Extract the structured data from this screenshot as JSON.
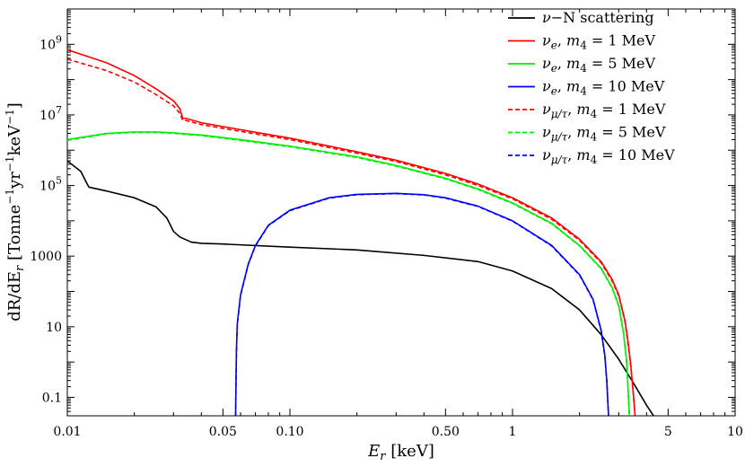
{
  "chart_data": {
    "type": "line",
    "xlabel": "E_r [keV]",
    "ylabel": "dR/dE_r [Tonne^-1 yr^-1 keV^-1]",
    "xscale": "log",
    "yscale": "log",
    "xlim": [
      0.01,
      10
    ],
    "ylim": [
      0.03,
      10000000000
    ],
    "legend_position": "top-right",
    "x_ticks": [
      {
        "value": 0.01,
        "label": "0.01"
      },
      {
        "value": 0.05,
        "label": "0.05"
      },
      {
        "value": 0.1,
        "label": "0.10"
      },
      {
        "value": 0.5,
        "label": "0.50"
      },
      {
        "value": 1,
        "label": "1"
      },
      {
        "value": 5,
        "label": "5"
      },
      {
        "value": 10,
        "label": "10"
      }
    ],
    "y_ticks": [
      {
        "value": 0.1,
        "label": "0.1",
        "power": ""
      },
      {
        "value": 10,
        "label": "10",
        "power": ""
      },
      {
        "value": 1000,
        "label": "1000",
        "power": ""
      },
      {
        "value": 100000,
        "label": "10",
        "power": "5"
      },
      {
        "value": 10000000,
        "label": "10",
        "power": "7"
      },
      {
        "value": 1000000000,
        "label": "10",
        "power": "9"
      }
    ],
    "series": [
      {
        "name": "ν−N scattering",
        "color": "#000000",
        "dash": "solid",
        "x": [
          0.01,
          0.0115,
          0.0122,
          0.0125,
          0.013,
          0.015,
          0.02,
          0.025,
          0.028,
          0.03,
          0.032,
          0.036,
          0.04,
          0.05,
          0.1,
          0.2,
          0.4,
          0.7,
          1.0,
          1.5,
          2.0,
          2.5,
          3.0,
          3.5,
          4.0,
          4.3
        ],
        "y": [
          500000,
          250000,
          120000,
          90000,
          85000,
          70000,
          45000,
          25000,
          12000,
          5000,
          3500,
          2500,
          2300,
          2200,
          1800,
          1500,
          1050,
          700,
          380,
          120,
          30,
          6,
          1.2,
          0.25,
          0.06,
          0.03
        ]
      },
      {
        "name": "νe, m4 = 1 MeV",
        "color": "#ff0000",
        "dash": "solid",
        "x": [
          0.01,
          0.015,
          0.02,
          0.025,
          0.03,
          0.032,
          0.033,
          0.034,
          0.04,
          0.06,
          0.1,
          0.2,
          0.3,
          0.5,
          0.7,
          1.0,
          1.5,
          2.0,
          2.5,
          2.8,
          3.0,
          3.2,
          3.3,
          3.4,
          3.5,
          3.55
        ],
        "y": [
          700000000,
          300000000,
          130000000,
          55000000,
          25000000,
          15000000,
          8000000,
          8000000,
          6000000,
          3800000,
          2200000,
          900000,
          520000,
          220000,
          110000,
          45000,
          12000,
          3000,
          700,
          220,
          80,
          15,
          4,
          0.8,
          0.1,
          0.03
        ]
      },
      {
        "name": "νe, m4 = 5 MeV",
        "color": "#00ee00",
        "dash": "solid",
        "x": [
          0.01,
          0.015,
          0.02,
          0.025,
          0.03,
          0.04,
          0.06,
          0.1,
          0.2,
          0.3,
          0.5,
          0.7,
          1.0,
          1.5,
          2.0,
          2.5,
          2.8,
          3.0,
          3.15,
          3.25,
          3.3,
          3.35
        ],
        "y": [
          2000000,
          3000000,
          3300000,
          3300000,
          3100000,
          2700000,
          2000000,
          1300000,
          650000,
          370000,
          160000,
          80000,
          32000,
          8500,
          2000,
          450,
          130,
          40,
          7,
          1.2,
          0.2,
          0.03
        ]
      },
      {
        "name": "νe, m4 = 10 MeV",
        "color": "#0000ff",
        "dash": "solid",
        "x": [
          0.057,
          0.0575,
          0.058,
          0.06,
          0.065,
          0.07,
          0.08,
          0.1,
          0.15,
          0.2,
          0.3,
          0.4,
          0.5,
          0.7,
          1.0,
          1.5,
          2.0,
          2.3,
          2.5,
          2.6,
          2.65,
          2.7
        ],
        "y": [
          0.03,
          2,
          12,
          80,
          600,
          2000,
          7500,
          20000,
          45000,
          56000,
          60000,
          55000,
          45000,
          26000,
          10000,
          2000,
          300,
          60,
          8,
          1.5,
          0.3,
          0.03
        ]
      },
      {
        "name": "νμ/τ, m4 = 1 MeV",
        "color": "#ff0000",
        "dash": "dashed",
        "x": [
          0.01,
          0.015,
          0.02,
          0.025,
          0.03,
          0.032,
          0.033,
          0.034,
          0.04,
          0.06,
          0.1,
          0.2,
          0.3,
          0.5,
          0.7,
          1.0,
          1.5,
          2.0,
          2.5,
          2.8,
          3.0,
          3.2,
          3.3,
          3.4,
          3.5,
          3.55
        ],
        "y": [
          380000000,
          180000000,
          85000000,
          38000000,
          18000000,
          11000000,
          7000000,
          7000000,
          5300000,
          3400000,
          2000000,
          820000,
          480000,
          200000,
          100000,
          42000,
          11000,
          2800,
          650,
          200,
          75,
          14,
          3.5,
          0.7,
          0.1,
          0.03
        ]
      },
      {
        "name": "νμ/τ, m4 = 5 MeV",
        "color": "#00ee00",
        "dash": "dashed",
        "x": [
          0.01,
          0.015,
          0.02,
          0.025,
          0.03,
          0.04,
          0.06,
          0.1,
          0.2,
          0.3,
          0.5,
          0.7,
          1.0,
          1.5,
          2.0,
          2.5,
          2.8,
          3.0,
          3.15,
          3.25,
          3.3,
          3.35
        ],
        "y": [
          1900000,
          2900000,
          3200000,
          3200000,
          3000000,
          2600000,
          1900000,
          1250000,
          620000,
          355000,
          155000,
          77000,
          31000,
          8200,
          1950,
          440,
          125,
          38,
          6.5,
          1.1,
          0.2,
          0.03
        ]
      },
      {
        "name": "νμ/τ, m4 = 10 MeV",
        "color": "#0000ff",
        "dash": "dashed",
        "x": [
          0.057,
          0.0575,
          0.058,
          0.06,
          0.065,
          0.07,
          0.08,
          0.1,
          0.15,
          0.2,
          0.3,
          0.4,
          0.5,
          0.7,
          1.0,
          1.5,
          2.0,
          2.3,
          2.5,
          2.6,
          2.65,
          2.7
        ],
        "y": [
          0.03,
          1.9,
          11,
          76,
          580,
          1950,
          7300,
          19500,
          44000,
          55000,
          59000,
          54000,
          44000,
          25500,
          9800,
          1950,
          290,
          58,
          7.8,
          1.4,
          0.3,
          0.03
        ]
      }
    ]
  }
}
